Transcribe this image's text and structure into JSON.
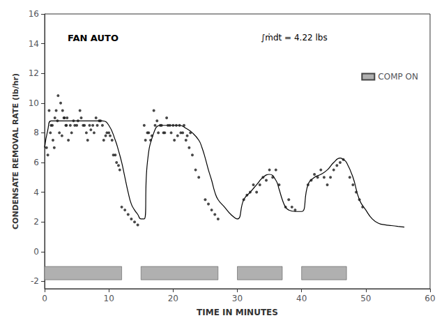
{
  "chart_data": {
    "type": "scatter",
    "title": "FAN AUTO",
    "xlabel": "TIME IN MINUTES",
    "ylabel": "CONDENSATE REMOVAL RATE (lb/hr)",
    "annotation": "∫ṁdt = 4.22 lbs",
    "xlim": [
      0,
      60
    ],
    "ylim": [
      -2.5,
      16
    ],
    "xticks": [
      0,
      10,
      20,
      30,
      40,
      50,
      60
    ],
    "yticks": [
      -2,
      0,
      2,
      4,
      6,
      8,
      10,
      12,
      14,
      16
    ],
    "grid": false,
    "legend": "upper right",
    "series": [
      {
        "name": "COMP ON",
        "type": "band",
        "color": "#b0b0b0",
        "intervals": [
          [
            0,
            12
          ],
          [
            15,
            27
          ],
          [
            30,
            37
          ],
          [
            40,
            47
          ]
        ],
        "y": -1.9,
        "height": 0.9
      },
      {
        "type": "line",
        "color": "#000000",
        "x": [
          0,
          0.5,
          1,
          2,
          3,
          4,
          5,
          6,
          7,
          8,
          9,
          10,
          11,
          11.5,
          12,
          12.5,
          13,
          13.5,
          14,
          14.5,
          15,
          15.5,
          16,
          17,
          18,
          19,
          20,
          21,
          22,
          23,
          24,
          24.5,
          25,
          25.5,
          26,
          26.5,
          27,
          28,
          29,
          30,
          31,
          32,
          33,
          34,
          35,
          36,
          36.5,
          37,
          37.5,
          38,
          39,
          40,
          41,
          42,
          43,
          44,
          45,
          46,
          46.5,
          47,
          48,
          49,
          50,
          51,
          52,
          53,
          54,
          55,
          56
        ],
        "values": [
          7.0,
          8.2,
          8.8,
          8.8,
          8.8,
          8.8,
          8.8,
          8.8,
          8.8,
          8.8,
          8.8,
          8.5,
          7.5,
          6.8,
          6.0,
          5.0,
          4.0,
          3.2,
          2.8,
          2.5,
          2.2,
          2.2,
          6.0,
          8.0,
          8.5,
          8.5,
          8.5,
          8.5,
          8.3,
          8.0,
          7.5,
          7.0,
          6.3,
          5.5,
          4.8,
          4.0,
          3.5,
          3.0,
          2.5,
          2.2,
          3.5,
          4.0,
          4.5,
          5.0,
          5.2,
          4.8,
          4.2,
          3.5,
          3.0,
          2.8,
          2.7,
          2.7,
          4.5,
          5.0,
          5.2,
          5.5,
          6.0,
          6.3,
          6.2,
          6.0,
          5.0,
          3.5,
          2.8,
          2.2,
          1.9,
          1.8,
          1.75,
          1.7,
          1.65
        ]
      },
      {
        "type": "scatter",
        "color": "#1a1a1a",
        "x": [
          0.3,
          0.7,
          1.0,
          1.3,
          1.6,
          2.0,
          2.3,
          2.7,
          3.0,
          3.3,
          0.5,
          0.9,
          1.2,
          1.5,
          1.8,
          2.1,
          2.5,
          2.8,
          3.1,
          3.4,
          3.5,
          4.0,
          4.5,
          5.0,
          5.5,
          6.0,
          6.5,
          7.0,
          7.5,
          8.0,
          8.5,
          9.0,
          9.5,
          10.0,
          10.5,
          11.0,
          11.5,
          3.7,
          4.2,
          4.7,
          5.2,
          5.7,
          6.2,
          6.7,
          7.2,
          7.7,
          8.2,
          8.7,
          9.2,
          9.7,
          10.2,
          10.7,
          11.2,
          11.7,
          12.0,
          12.5,
          13.0,
          13.5,
          14.0,
          14.5,
          15.5,
          16.0,
          16.5,
          17.0,
          17.5,
          18.0,
          18.5,
          19.0,
          19.5,
          20.0,
          20.5,
          21.0,
          21.5,
          22.0,
          22.5,
          23.0,
          23.5,
          24.0,
          15.7,
          16.2,
          16.7,
          17.2,
          17.7,
          18.2,
          18.7,
          19.2,
          19.7,
          20.2,
          20.7,
          21.2,
          21.7,
          22.2,
          22.7,
          25.0,
          25.5,
          26.0,
          26.5,
          27.0,
          31.0,
          31.5,
          32.0,
          32.5,
          33.0,
          33.5,
          34.0,
          34.5,
          35.0,
          35.5,
          36.0,
          36.5,
          37.5,
          38.0,
          38.5,
          39.0,
          41.0,
          41.5,
          42.0,
          42.5,
          43.0,
          43.5,
          44.0,
          44.5,
          45.0,
          45.5,
          46.0,
          46.5,
          47.5,
          48.0,
          48.5,
          49.0,
          49.5
        ],
        "values": [
          7.0,
          9.5,
          8.5,
          7.5,
          9.0,
          8.8,
          8.0,
          7.8,
          9.0,
          8.5,
          6.5,
          8.0,
          8.5,
          7.0,
          9.5,
          10.5,
          10.0,
          9.5,
          9.0,
          8.5,
          9.0,
          8.5,
          8.8,
          8.5,
          9.5,
          8.5,
          8.0,
          8.5,
          8.5,
          9.0,
          8.8,
          8.5,
          7.8,
          8.0,
          7.5,
          6.5,
          5.8,
          7.5,
          8.0,
          8.5,
          8.8,
          9.0,
          8.5,
          7.5,
          8.2,
          8.0,
          8.5,
          8.8,
          7.5,
          8.0,
          7.8,
          6.5,
          6.0,
          5.5,
          3.0,
          2.8,
          2.5,
          2.2,
          2.0,
          1.8,
          8.5,
          8.0,
          7.5,
          9.5,
          8.8,
          8.5,
          8.0,
          9.0,
          8.5,
          8.5,
          8.5,
          8.5,
          8.0,
          7.5,
          7.0,
          6.5,
          5.5,
          5.0,
          7.5,
          8.0,
          7.8,
          8.5,
          8.0,
          8.5,
          8.0,
          8.5,
          8.0,
          7.5,
          7.8,
          8.0,
          8.5,
          7.8,
          8.0,
          3.5,
          3.2,
          2.8,
          2.5,
          2.2,
          3.5,
          3.8,
          4.0,
          4.5,
          4.0,
          4.5,
          5.0,
          4.8,
          5.5,
          5.0,
          5.5,
          4.5,
          3.0,
          3.5,
          3.0,
          2.8,
          4.5,
          4.8,
          5.2,
          5.0,
          5.5,
          5.0,
          4.5,
          5.0,
          5.5,
          5.8,
          6.0,
          6.2,
          5.0,
          4.5,
          4.0,
          3.5,
          3.0
        ]
      }
    ]
  }
}
